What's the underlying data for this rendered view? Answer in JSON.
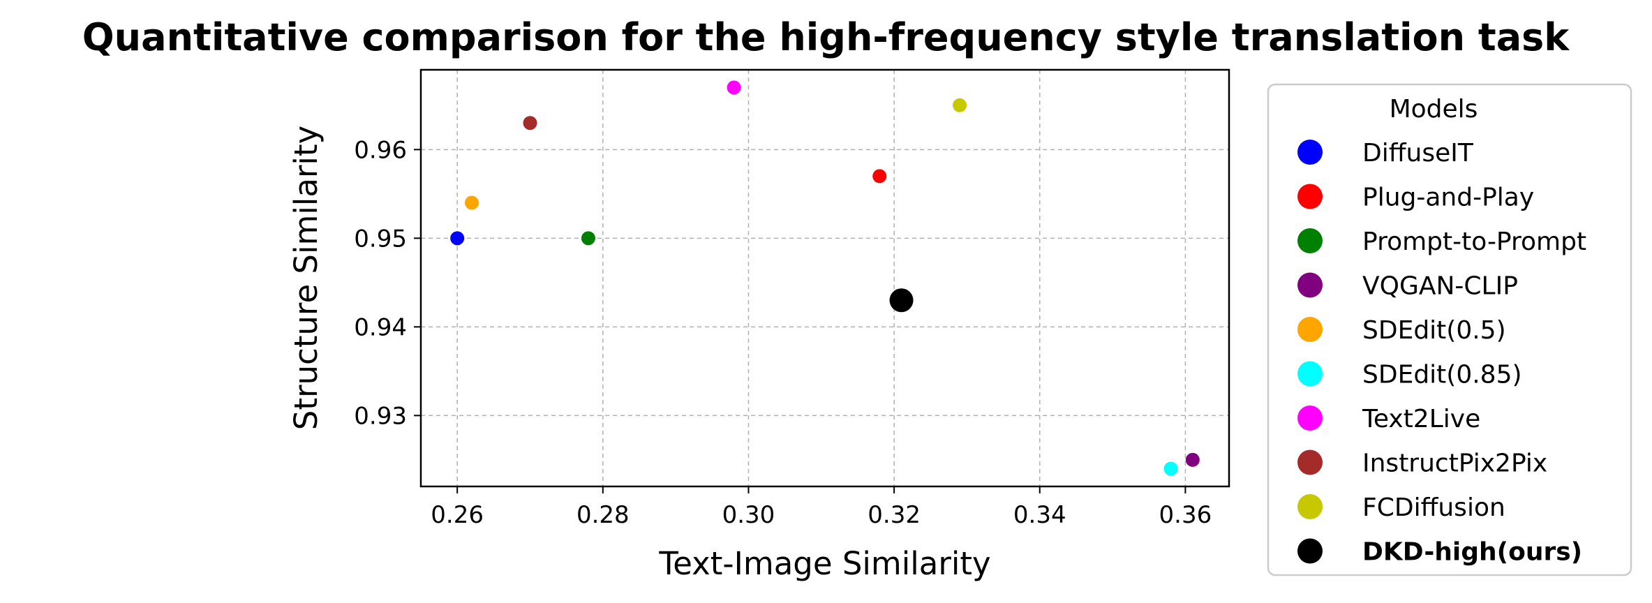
{
  "chart_data": {
    "type": "scatter",
    "title": "Quantitative comparison for the high-frequency style translation task",
    "xlabel": "Text-Image Similarity",
    "ylabel": "Structure Similarity",
    "xlim": [
      0.255,
      0.366
    ],
    "ylim": [
      0.922,
      0.969
    ],
    "xticks": [
      "0.26",
      "0.28",
      "0.30",
      "0.32",
      "0.34",
      "0.36"
    ],
    "yticks": [
      "0.93",
      "0.94",
      "0.95",
      "0.96"
    ],
    "grid": true,
    "legend": {
      "title": "Models",
      "placement": "outside-right"
    },
    "series": [
      {
        "name": "DiffuseIT",
        "x": 0.26,
        "y": 0.95,
        "color": "#0000ff",
        "size": "normal"
      },
      {
        "name": "Plug-and-Play",
        "x": 0.318,
        "y": 0.957,
        "color": "#ff0000",
        "size": "normal"
      },
      {
        "name": "Prompt-to-Prompt",
        "x": 0.278,
        "y": 0.95,
        "color": "#008000",
        "size": "normal"
      },
      {
        "name": "VQGAN-CLIP",
        "x": 0.361,
        "y": 0.925,
        "color": "#800080",
        "size": "normal"
      },
      {
        "name": "SDEdit(0.5)",
        "x": 0.262,
        "y": 0.954,
        "color": "#ffa500",
        "size": "normal"
      },
      {
        "name": "SDEdit(0.85)",
        "x": 0.358,
        "y": 0.924,
        "color": "#00ffff",
        "size": "normal"
      },
      {
        "name": "Text2Live",
        "x": 0.298,
        "y": 0.967,
        "color": "#ff00ff",
        "size": "normal"
      },
      {
        "name": "InstructPix2Pix",
        "x": 0.27,
        "y": 0.963,
        "color": "#a52a2a",
        "size": "normal"
      },
      {
        "name": "FCDiffusion",
        "x": 0.329,
        "y": 0.965,
        "color": "#c8c800",
        "size": "normal"
      },
      {
        "name": "DKD-high(ours)",
        "x": 0.321,
        "y": 0.943,
        "color": "#000000",
        "size": "large",
        "bold": true
      }
    ]
  }
}
